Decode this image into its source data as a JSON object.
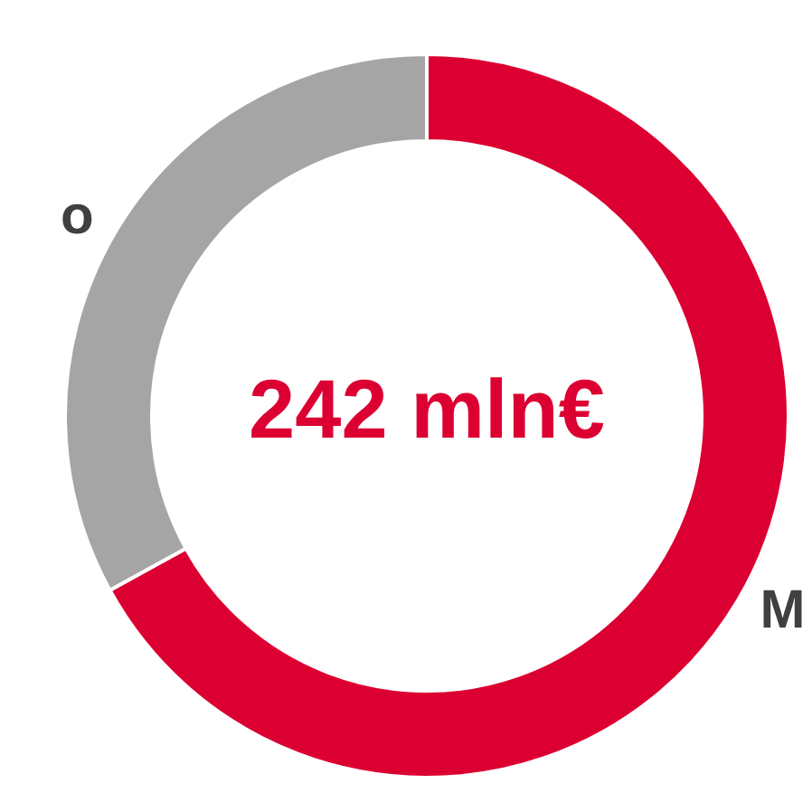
{
  "chart_data": {
    "type": "donut",
    "categories": [
      "M",
      "o"
    ],
    "values": [
      67,
      33
    ],
    "colors": [
      "#dc0032",
      "#a5a5a5"
    ],
    "annotations": [
      "242 mln€"
    ]
  }
}
